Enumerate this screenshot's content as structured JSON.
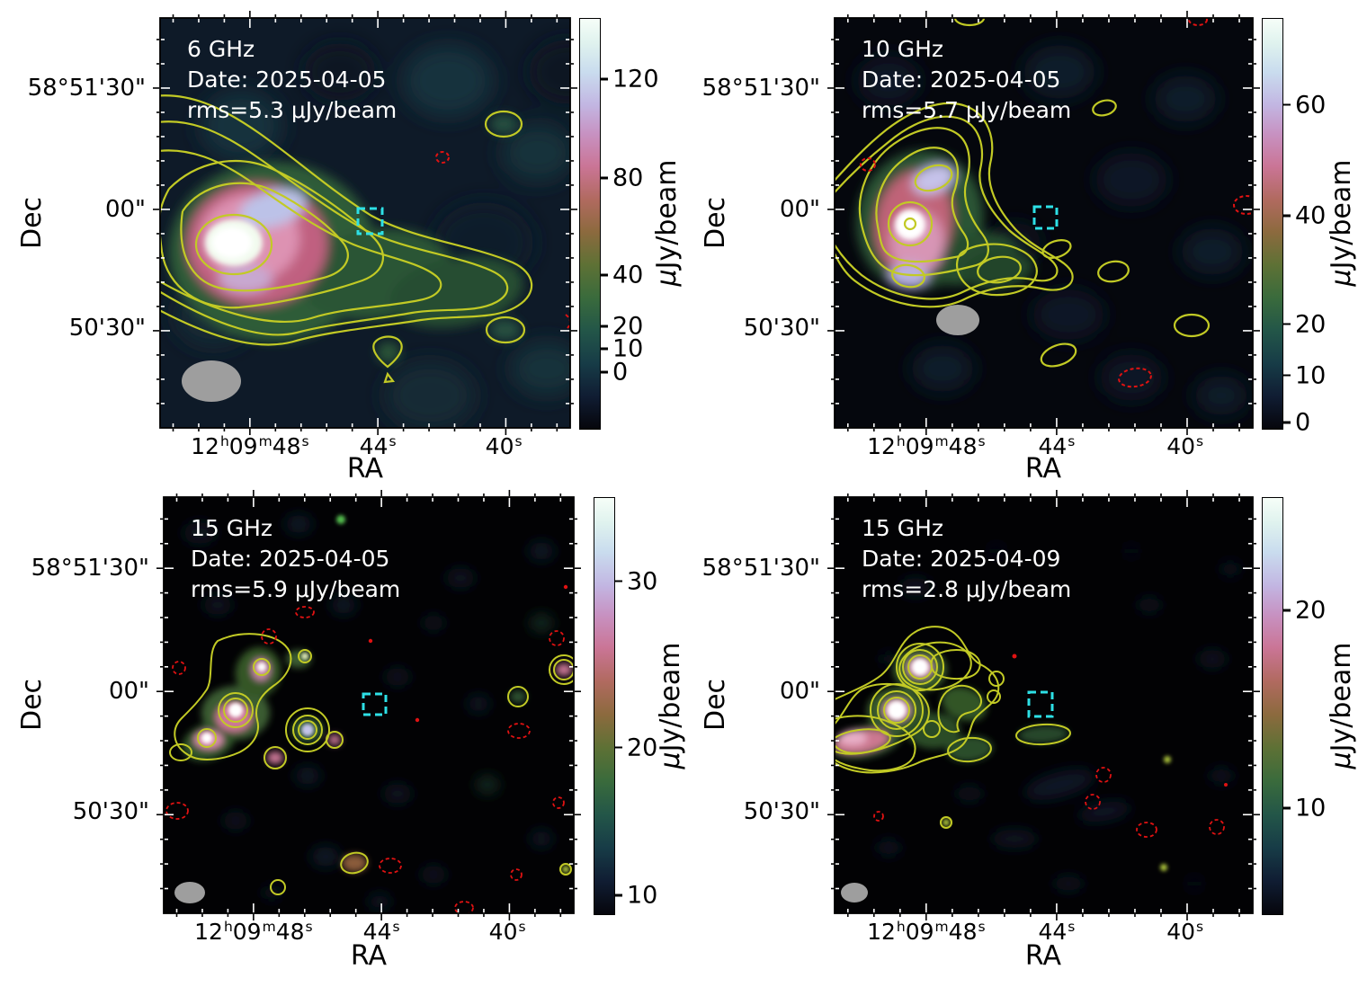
{
  "figure": {
    "background": "#ffffff",
    "description": "2x2 grid of VLA radio continuum maps of the same sky field at 6, 10 and 15 GHz with yellow positive contours, red dashed negative contours, a cyan dashed source box, grey synthesized beam ellipses and individual colorbars"
  },
  "colors": {
    "contour_positive": "#c2ca25",
    "contour_negative": "#e01212",
    "source_box": "#2de0e6",
    "beam": "#9e9e9e",
    "annotation_text": "#ffffff",
    "axis_text": "#000000",
    "colorbar_top": "#f6fef8",
    "colorbar_bottom": "#06060c"
  },
  "axes": {
    "xlabel": "RA",
    "ylabel": "Dec",
    "x_ticks": [
      {
        "pos": 0.219,
        "segments": [
          "12",
          "h",
          "09",
          "m",
          "48",
          "s"
        ]
      },
      {
        "pos": 0.531,
        "segments": [
          "44",
          "s"
        ]
      },
      {
        "pos": 0.838,
        "segments": [
          "40",
          "s"
        ]
      }
    ],
    "y_ticks": [
      {
        "pos": 0.171,
        "label": "58°51'30\""
      },
      {
        "pos": 0.467,
        "label": "00\""
      },
      {
        "pos": 0.757,
        "label": "50'30\""
      }
    ]
  },
  "colorbar": {
    "unit_prefix": "μ",
    "unit_rest": "Jy/beam",
    "unit": "μJy/beam"
  },
  "chart_data": {
    "type": "heatmap",
    "layout": "2 rows x 2 columns, each map with its own colorbar on the right",
    "shared": {
      "xlabel": "RA",
      "ylabel": "Dec",
      "x_tick_labels": [
        "12h09m48s",
        "44s",
        "40s"
      ],
      "y_tick_labels": [
        "58°51'30\"",
        "00\"",
        "50'30\""
      ],
      "colorbar_unit": "μJy/beam",
      "positive_contours": "yellow solid",
      "negative_contours": "red dashed",
      "source_marker": "cyan dashed square near map center",
      "beam_marker": "grey filled ellipse at bottom-left of each map"
    },
    "panels": [
      {
        "position": "top-left",
        "frequency": "6 GHz",
        "observation_date": "2025-04-05",
        "rms_uJy_per_beam": 5.3,
        "lines": [
          "6 GHz",
          "Date: 2025-04-05",
          "rms=5.3 μJy/beam"
        ],
        "colorbar_tick_values": [
          0,
          10,
          20,
          40,
          80,
          120
        ],
        "cticks": [
          {
            "label": "120",
            "pos": 0.147
          },
          {
            "label": "80",
            "pos": 0.388
          },
          {
            "label": "40",
            "pos": 0.625
          },
          {
            "label": "20",
            "pos": 0.75
          },
          {
            "label": "10",
            "pos": 0.805
          },
          {
            "label": "0",
            "pos": 0.862
          }
        ],
        "features": "bright extended source left of center with white core, pink halo, green tail to the west enclosed by ~6 nested yellow contours; two small yellow contour islands on the right; small red dashed negative contour; cyan dashed box near center; grey beam ellipse bottom-left"
      },
      {
        "position": "top-right",
        "frequency": "10 GHz",
        "observation_date": "2025-04-05",
        "rms_uJy_per_beam": 5.7,
        "lines": [
          "10 GHz",
          "Date: 2025-04-05",
          "rms=5.7 μJy/beam"
        ],
        "colorbar_tick_values": [
          0,
          10,
          20,
          40,
          60
        ],
        "cticks": [
          {
            "label": "60",
            "pos": 0.21
          },
          {
            "label": "40",
            "pos": 0.48
          },
          {
            "label": "20",
            "pos": 0.745
          },
          {
            "label": "10",
            "pos": 0.87
          },
          {
            "label": "0",
            "pos": 0.985
          }
        ],
        "features": "compact bright source upper-left with white core and pink envelope in nested contours, short tail to south-east; several small yellow contour islands; red dashed negative contours; cyan dashed box; grey beam ellipse"
      },
      {
        "position": "bottom-left",
        "frequency": "15 GHz",
        "observation_date": "2025-04-05",
        "rms_uJy_per_beam": 5.9,
        "lines": [
          "15 GHz",
          "Date: 2025-04-05",
          "rms=5.9 μJy/beam"
        ],
        "colorbar_tick_values": [
          10,
          20,
          30
        ],
        "cticks": [
          {
            "label": "30",
            "pos": 0.2
          },
          {
            "label": "20",
            "pos": 0.6
          },
          {
            "label": "10",
            "pos": 0.955
          }
        ],
        "features": "mostly empty dark map; chain of compact knots with contours in upper-left; scattered faint blobs and many small red dashed negative contours; cyan dashed box; small grey beam ellipse"
      },
      {
        "position": "bottom-right",
        "frequency": "15 GHz",
        "observation_date": "2025-04-09",
        "rms_uJy_per_beam": 2.8,
        "lines": [
          "15 GHz",
          "Date: 2025-04-09",
          "rms=2.8 μJy/beam"
        ],
        "colorbar_tick_values": [
          10,
          20
        ],
        "cticks": [
          {
            "label": "20",
            "pos": 0.27
          },
          {
            "label": "10",
            "pos": 0.745
          }
        ],
        "features": "two bright knots with concentric contours upper-left, pink wing toward left edge, green contoured clumps trailing east; red dashed negative contours lower right; cyan dashed box; small grey beam ellipse"
      }
    ]
  }
}
